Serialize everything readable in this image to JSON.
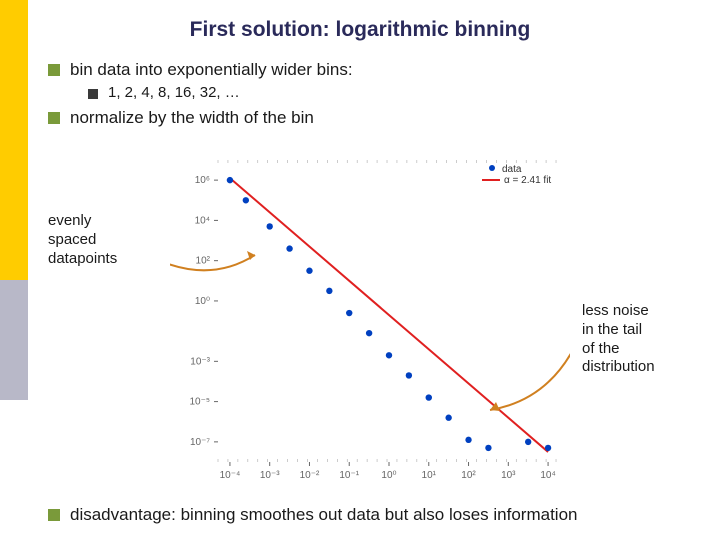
{
  "title": "First solution: logarithmic binning",
  "bullets": {
    "b1": "bin data into exponentially wider bins:",
    "b1sub": "1, 2, 4,  8, 16, 32, …",
    "b2": "normalize by the width of the bin",
    "b3": "disadvantage: binning smoothes out data but also loses information"
  },
  "annotations": {
    "left": "evenly\nspaced\ndatapoints",
    "right": "less noise\nin the tail\nof the\ndistribution"
  },
  "chart": {
    "type": "scatter-line-loglog",
    "x_ticks": [
      -4,
      -3,
      -2,
      -1,
      0,
      1,
      2,
      3,
      4
    ],
    "x_tick_labels": [
      "10⁻⁴",
      "10⁻³",
      "10⁻²",
      "10⁻¹",
      "10⁰",
      "10¹",
      "10²",
      "10³",
      "10⁴"
    ],
    "y_ticks": [
      -7,
      -5,
      -3,
      0,
      2,
      4,
      6
    ],
    "y_tick_labels": [
      "10⁻⁷",
      "10⁻⁵",
      "10⁻³",
      "10⁰",
      "10²",
      "10⁴",
      "10⁶"
    ],
    "xlim": [
      -4.3,
      4.3
    ],
    "ylim": [
      -8,
      7
    ],
    "data_points_logx_logy": [
      [
        -4.0,
        6.0
      ],
      [
        -3.6,
        5.0
      ],
      [
        -3.0,
        3.7
      ],
      [
        -2.5,
        2.6
      ],
      [
        -2.0,
        1.5
      ],
      [
        -1.5,
        0.5
      ],
      [
        -1.0,
        -0.6
      ],
      [
        -0.5,
        -1.6
      ],
      [
        0.0,
        -2.7
      ],
      [
        0.5,
        -3.7
      ],
      [
        1.0,
        -4.8
      ],
      [
        1.5,
        -5.8
      ],
      [
        2.0,
        -6.9
      ],
      [
        2.5,
        -7.3
      ],
      [
        3.5,
        -7.0
      ],
      [
        4.0,
        -7.3
      ]
    ],
    "fit_line": {
      "x1": -4.0,
      "y1": 6.1,
      "x2": 4.0,
      "y2": -7.5
    },
    "legend": {
      "data": "data",
      "fit": "α = 2.41 fit"
    },
    "colors": {
      "points": "#0040c0",
      "line": "#e02020",
      "ticks": "#666666",
      "minor_ticks": "#aaaaaa",
      "arrow1": "#d08020",
      "arrow2": "#d08020"
    },
    "tick_fontsize": 10,
    "point_radius": 3.2,
    "line_width": 2
  },
  "layout": {
    "sidebar_yellow": "#ffcc00",
    "sidebar_gray": "#b8b8c8"
  }
}
